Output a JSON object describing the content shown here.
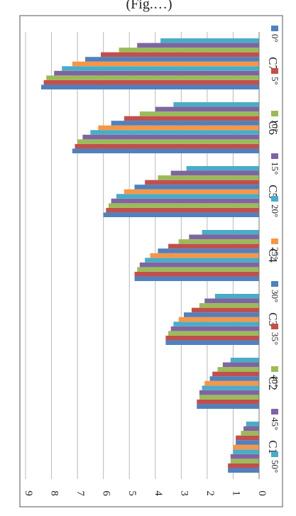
{
  "caption_fragment": "(Fig.…)",
  "chart_data": {
    "type": "bar",
    "orientation": "rotated-90-clockwise",
    "categories": [
      "C1",
      "C2",
      "C3",
      "C4",
      "C5",
      "C6",
      "C7"
    ],
    "y_ticks": [
      "0",
      "1",
      "2",
      "3",
      "4",
      "5",
      "6",
      "7",
      "8",
      "9"
    ],
    "ylim": [
      0,
      9
    ],
    "grid": true,
    "legend_position": "top",
    "series": [
      {
        "name": "0°",
        "color": "#4f81bd",
        "values": [
          1.2,
          2.4,
          3.6,
          4.8,
          6.0,
          7.2,
          8.4
        ]
      },
      {
        "name": "5°",
        "color": "#c0504d",
        "values": [
          1.2,
          2.4,
          3.6,
          4.8,
          5.9,
          7.1,
          8.3
        ]
      },
      {
        "name": "10°",
        "color": "#9bbb59",
        "values": [
          1.1,
          2.3,
          3.5,
          4.7,
          5.8,
          7.0,
          8.2
        ]
      },
      {
        "name": "15°",
        "color": "#8064a2",
        "values": [
          1.1,
          2.3,
          3.4,
          4.6,
          5.7,
          6.8,
          7.9
        ]
      },
      {
        "name": "20°",
        "color": "#4bacc6",
        "values": [
          1.0,
          2.2,
          3.3,
          4.4,
          5.5,
          6.5,
          7.6
        ]
      },
      {
        "name": "25°",
        "color": "#f79646",
        "values": [
          1.0,
          2.1,
          3.1,
          4.2,
          5.2,
          6.2,
          7.2
        ]
      },
      {
        "name": "30°",
        "color": "#4f81bd",
        "values": [
          0.9,
          1.9,
          2.9,
          3.9,
          4.8,
          5.7,
          6.7
        ]
      },
      {
        "name": "35°",
        "color": "#c0504d",
        "values": [
          0.9,
          1.8,
          2.6,
          3.5,
          4.4,
          5.2,
          6.1
        ]
      },
      {
        "name": "40°",
        "color": "#9bbb59",
        "values": [
          0.7,
          1.6,
          2.3,
          3.1,
          3.9,
          4.6,
          5.4
        ]
      },
      {
        "name": "45°",
        "color": "#8064a2",
        "values": [
          0.6,
          1.4,
          2.1,
          2.7,
          3.4,
          4.0,
          4.7
        ]
      },
      {
        "name": "50°",
        "color": "#4bacc6",
        "values": [
          0.5,
          1.1,
          1.7,
          2.2,
          2.8,
          3.3,
          3.8
        ]
      }
    ]
  }
}
